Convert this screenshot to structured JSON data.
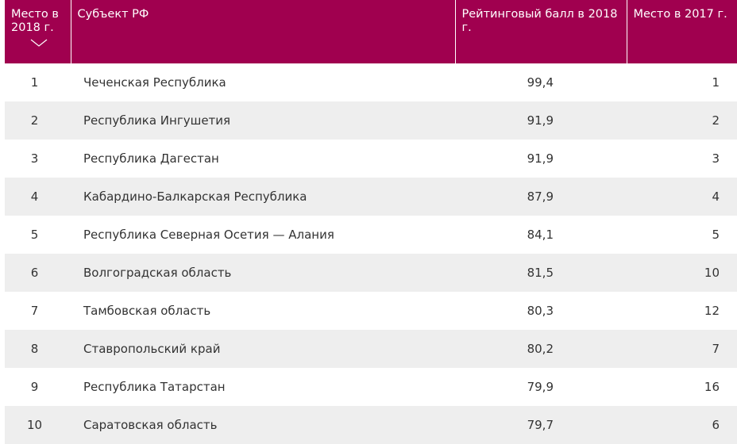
{
  "table": {
    "headers": {
      "rank_2018": "Место в 2018 г.",
      "region": "Субъект РФ",
      "score_2018": "Рейтинговый балл в 2018 г.",
      "rank_2017": "Место в 2017 г."
    },
    "sort_icon": "chevron-down-icon",
    "header_color": "#a0004f",
    "rows": [
      {
        "rank": "1",
        "region": "Чеченская Республика",
        "score": "99,4",
        "prev": "1"
      },
      {
        "rank": "2",
        "region": "Республика Ингушетия",
        "score": "91,9",
        "prev": "2"
      },
      {
        "rank": "3",
        "region": "Республика Дагестан",
        "score": "91,9",
        "prev": "3"
      },
      {
        "rank": "4",
        "region": "Кабардино-Балкарская Республика",
        "score": "87,9",
        "prev": "4"
      },
      {
        "rank": "5",
        "region": "Республика Северная Осетия — Алания",
        "score": "84,1",
        "prev": "5"
      },
      {
        "rank": "6",
        "region": "Волгоградская область",
        "score": "81,5",
        "prev": "10"
      },
      {
        "rank": "7",
        "region": "Тамбовская область",
        "score": "80,3",
        "prev": "12"
      },
      {
        "rank": "8",
        "region": "Ставропольский край",
        "score": "80,2",
        "prev": "7"
      },
      {
        "rank": "9",
        "region": "Республика Татарстан",
        "score": "79,9",
        "prev": "16"
      },
      {
        "rank": "10",
        "region": "Саратовская область",
        "score": "79,7",
        "prev": "6"
      }
    ]
  }
}
